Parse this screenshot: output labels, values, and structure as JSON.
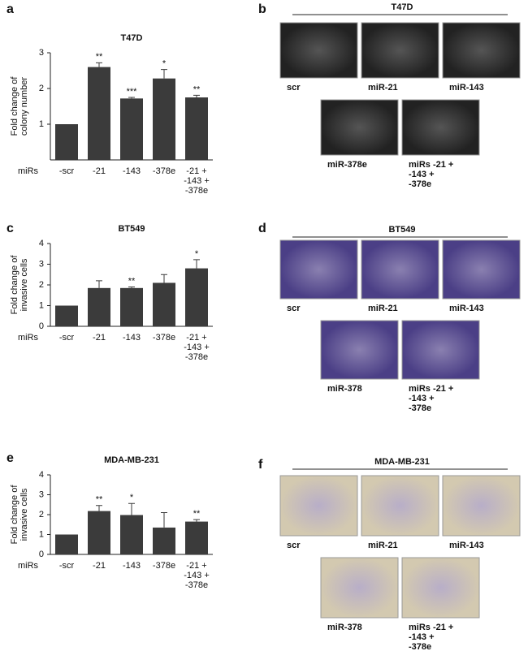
{
  "chart_data": [
    {
      "type": "bar",
      "panel": "a",
      "title": "T47D",
      "y_label": "Fold change of\ncolony number",
      "x_label": "miRs",
      "categories": [
        "-scr",
        "-21",
        "-143",
        "-378e",
        "-21 +\n-143 +\n-378e"
      ],
      "values": [
        1,
        2.6,
        1.72,
        2.28,
        1.75
      ],
      "errors": [
        0,
        0.12,
        0.03,
        0.25,
        0.06
      ],
      "significance": [
        null,
        "**",
        "***",
        "*",
        "**"
      ],
      "color": "#3b3b3b",
      "ylim": [
        0,
        3
      ],
      "yticks": [
        1,
        2,
        3
      ]
    },
    {
      "type": "bar",
      "panel": "c",
      "title": "BT549",
      "y_label": "Fold change of\ninvasive cells",
      "x_label": "miRs",
      "categories": [
        "-scr",
        "-21",
        "-143",
        "-378e",
        "-21 +\n-143 +\n-378e"
      ],
      "values": [
        1,
        1.85,
        1.85,
        2.1,
        2.8
      ],
      "errors": [
        0,
        0.35,
        0.05,
        0.4,
        0.42
      ],
      "significance": [
        null,
        null,
        "**",
        null,
        "*"
      ],
      "color": "#3b3b3b",
      "ylim": [
        0,
        4
      ],
      "yticks": [
        0,
        1,
        2,
        3,
        4
      ]
    },
    {
      "type": "bar",
      "panel": "e",
      "title": "MDA-MB-231",
      "y_label": "Fold change of\ninvasive cells",
      "x_label": "miRs",
      "categories": [
        "-scr",
        "-21",
        "-143",
        "-378e",
        "-21 +\n-143 +\n-378e"
      ],
      "values": [
        1,
        2.18,
        1.98,
        1.35,
        1.65
      ],
      "errors": [
        0,
        0.28,
        0.58,
        0.75,
        0.1
      ],
      "significance": [
        null,
        "**",
        "*",
        null,
        "**"
      ],
      "color": "#3b3b3b",
      "ylim": [
        0,
        4
      ],
      "yticks": [
        0,
        1,
        2,
        3,
        4
      ]
    }
  ],
  "image_panels": [
    {
      "panel": "b",
      "title": "T47D",
      "images": [
        "scr",
        "miR-21",
        "miR-143",
        "miR-378e",
        "miRs -21 +\n-143 +\n-378e"
      ]
    },
    {
      "panel": "d",
      "title": "BT549",
      "images": [
        "scr",
        "miR-21",
        "miR-143",
        "miR-378",
        "miRs -21 +\n-143 +\n-378e"
      ]
    },
    {
      "panel": "f",
      "title": "MDA-MB-231",
      "images": [
        "scr",
        "miR-21",
        "miR-143",
        "miR-378",
        "miRs -21 +\n-143 +\n-378e"
      ]
    }
  ]
}
